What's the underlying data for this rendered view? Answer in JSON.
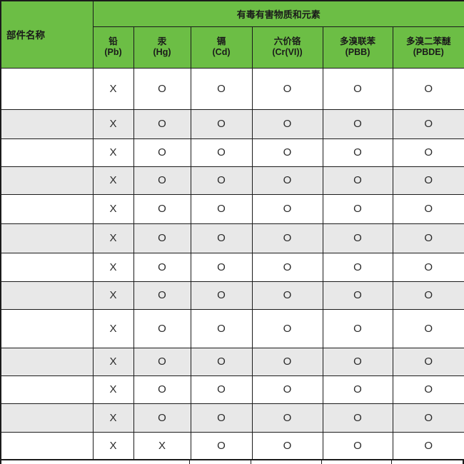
{
  "table": {
    "part_name_header": "部件名称",
    "group_header": "有毒有害物质和元素",
    "columns": [
      {
        "name": "铅",
        "symbol": "(Pb)"
      },
      {
        "name": "汞",
        "symbol": "(Hg)"
      },
      {
        "name": "镉",
        "symbol": "(Cd)"
      },
      {
        "name": "六价铬",
        "symbol": "(Cr(VI))"
      },
      {
        "name": "多溴联苯",
        "symbol": "(PBB)"
      },
      {
        "name": "多溴二苯醚",
        "symbol": "(PBDE)"
      }
    ],
    "rows": [
      {
        "part": "",
        "values": [
          "X",
          "O",
          "O",
          "O",
          "O",
          "O"
        ]
      },
      {
        "part": "",
        "values": [
          "X",
          "O",
          "O",
          "O",
          "O",
          "O"
        ]
      },
      {
        "part": "",
        "values": [
          "X",
          "O",
          "O",
          "O",
          "O",
          "O"
        ]
      },
      {
        "part": "",
        "values": [
          "X",
          "O",
          "O",
          "O",
          "O",
          "O"
        ]
      },
      {
        "part": "",
        "values": [
          "X",
          "O",
          "O",
          "O",
          "O",
          "O"
        ]
      },
      {
        "part": "",
        "values": [
          "X",
          "O",
          "O",
          "O",
          "O",
          "O"
        ]
      },
      {
        "part": "",
        "values": [
          "X",
          "O",
          "O",
          "O",
          "O",
          "O"
        ]
      },
      {
        "part": "",
        "values": [
          "X",
          "O",
          "O",
          "O",
          "O",
          "O"
        ]
      },
      {
        "part": "",
        "values": [
          "X",
          "O",
          "O",
          "O",
          "O",
          "O"
        ]
      },
      {
        "part": "",
        "values": [
          "X",
          "O",
          "O",
          "O",
          "O",
          "O"
        ]
      },
      {
        "part": "",
        "values": [
          "X",
          "O",
          "O",
          "O",
          "O",
          "O"
        ]
      },
      {
        "part": "",
        "values": [
          "X",
          "O",
          "O",
          "O",
          "O",
          "O"
        ]
      },
      {
        "part": "",
        "values": [
          "X",
          "X",
          "O",
          "O",
          "O",
          "O"
        ]
      }
    ],
    "colors": {
      "header_green": "#6CBE45",
      "alt_row_gray": "#E8E8E8",
      "border": "#1B1B1B",
      "text": "#1A1A1A"
    }
  }
}
